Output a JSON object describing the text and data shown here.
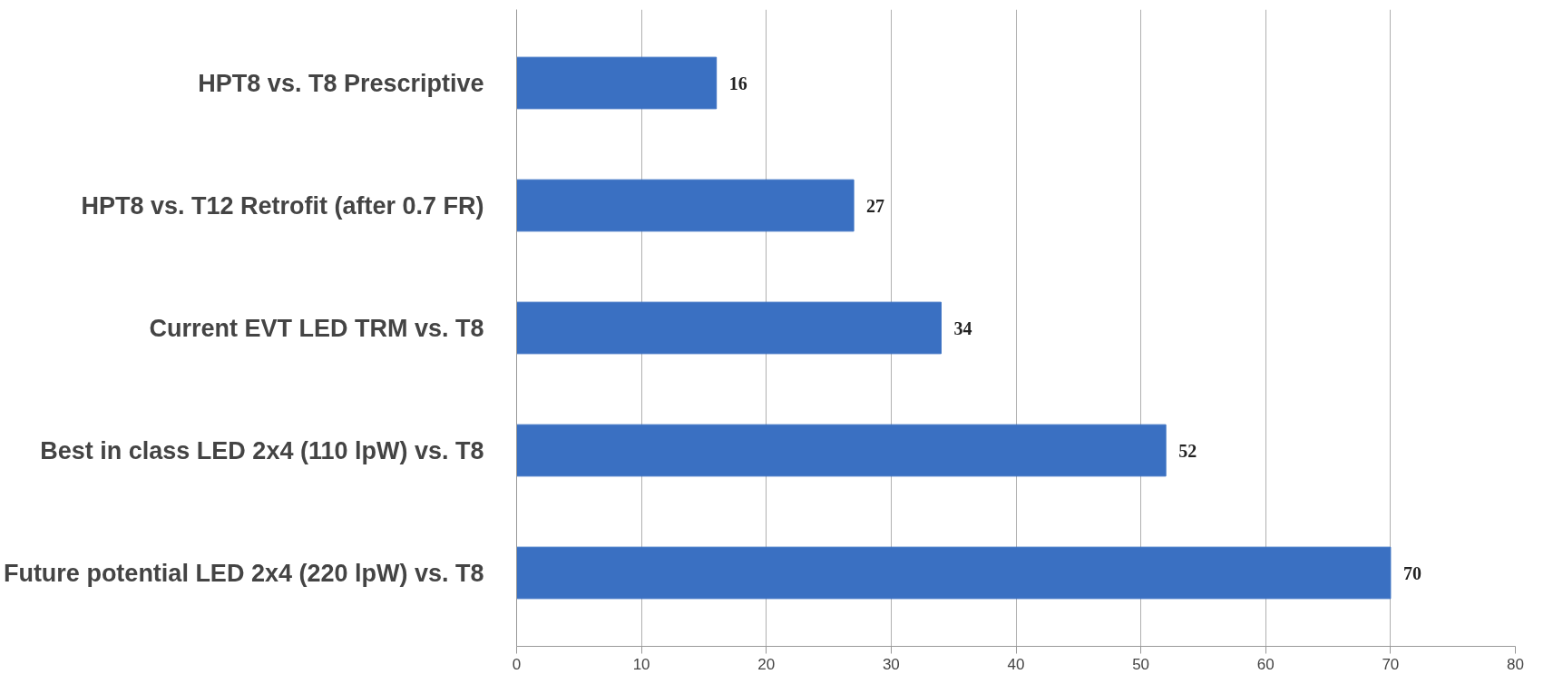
{
  "chart_data": {
    "type": "bar",
    "orientation": "horizontal",
    "categories": [
      "HPT8 vs. T8 Prescriptive",
      "HPT8 vs. T12 Retrofit (after 0.7 FR)",
      "Current EVT LED TRM vs. T8",
      "Best in class LED 2x4 (110 lpW) vs. T8",
      "Future potential LED 2x4 (220 lpW) vs. T8"
    ],
    "values": [
      16,
      27,
      34,
      52,
      70
    ],
    "color": "#3a70c2",
    "xlim": [
      0,
      80
    ],
    "xticks": [
      0,
      10,
      20,
      30,
      40,
      50,
      60,
      70,
      80
    ],
    "grid": "x",
    "data_labels": true
  }
}
